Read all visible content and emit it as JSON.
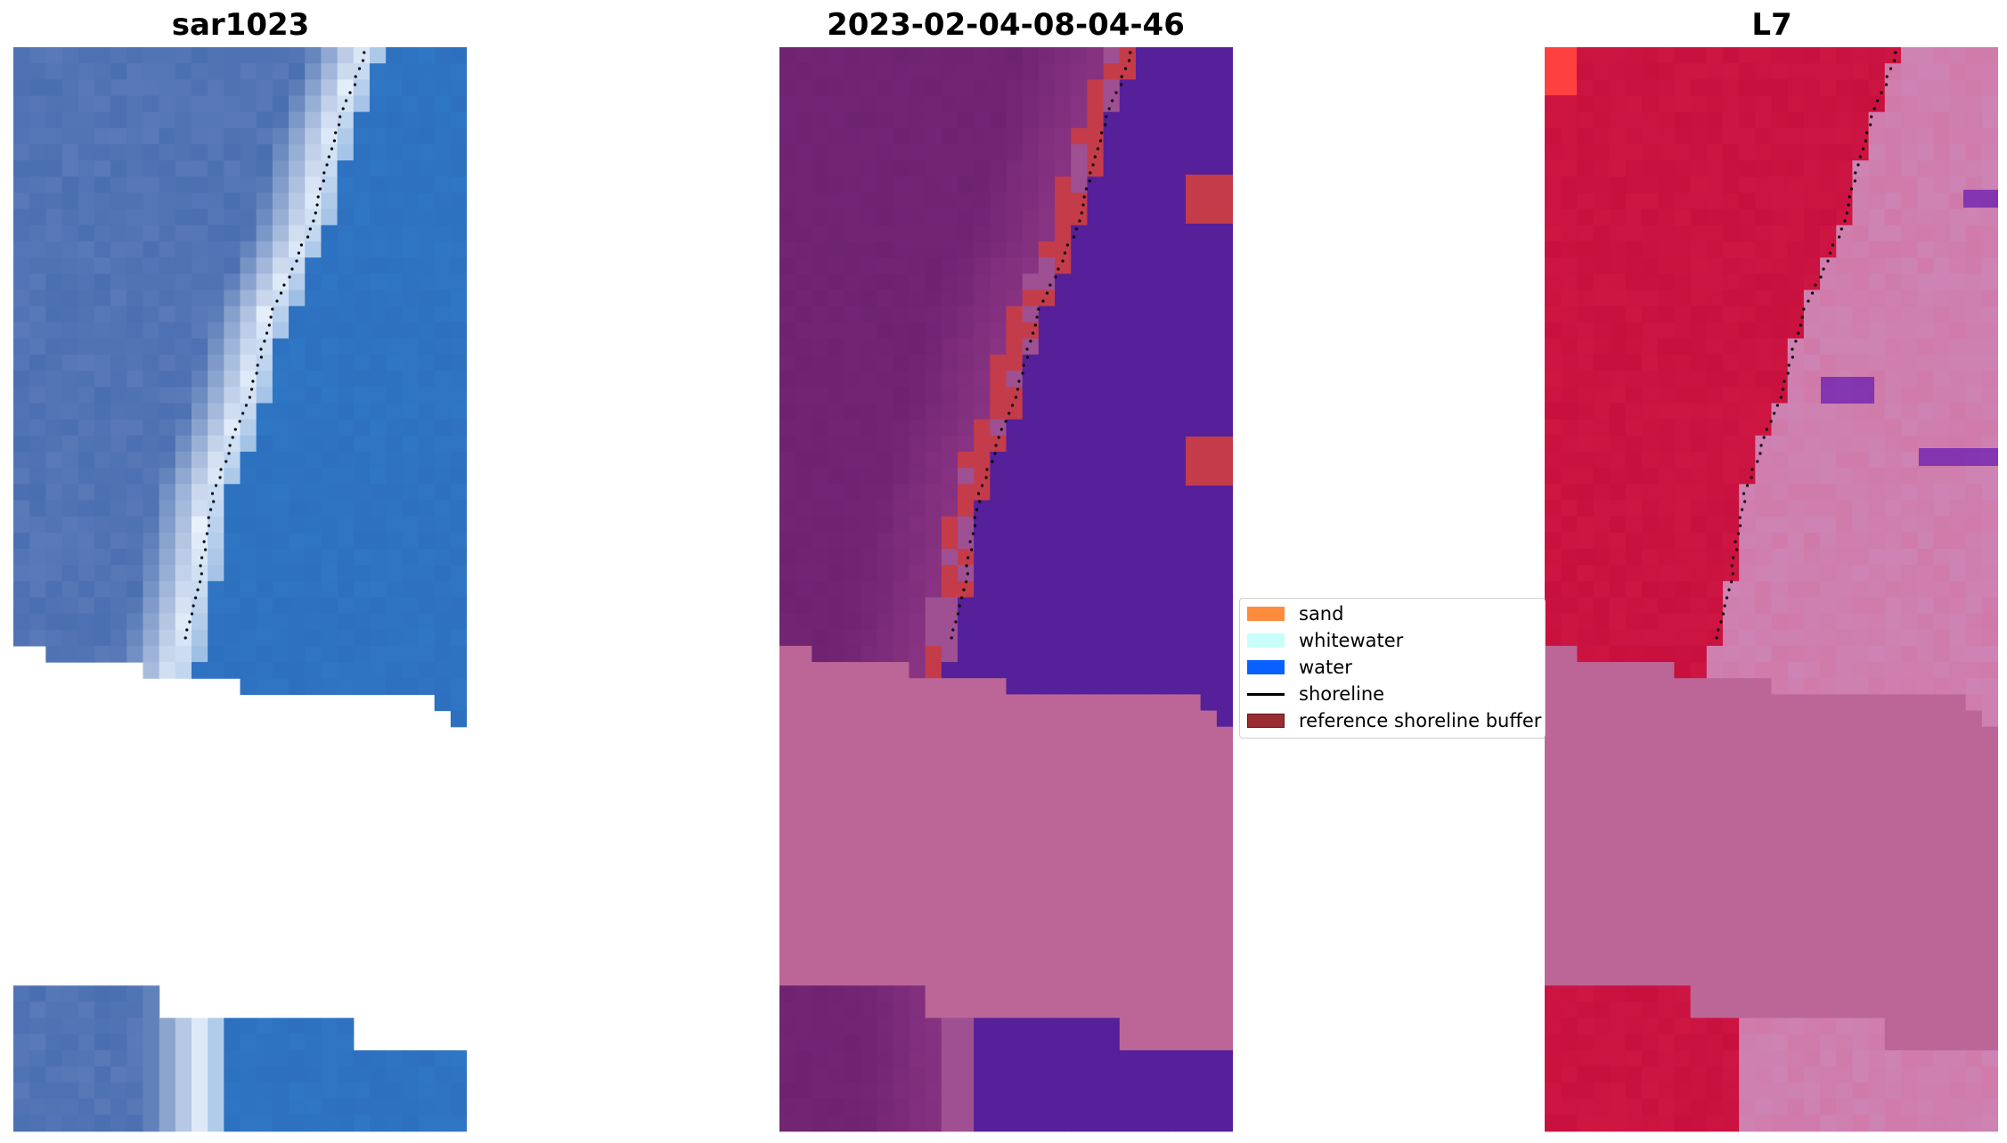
{
  "panels": [
    {
      "title": "sar1023",
      "scheme": "rgb"
    },
    {
      "title": "2023-02-04-08-04-46",
      "scheme": "class"
    },
    {
      "title": "L7",
      "scheme": "ndwi"
    }
  ],
  "legend": {
    "items": [
      {
        "label": "sand",
        "color": "#ff8c3c",
        "kind": "patch"
      },
      {
        "label": "whitewater",
        "color": "#c8fffa",
        "kind": "patch"
      },
      {
        "label": "water",
        "color": "#0a60ff",
        "kind": "patch"
      },
      {
        "label": "shoreline",
        "color": "#000000",
        "kind": "line"
      },
      {
        "label": "reference shoreline buffer",
        "color": "#9b2d32",
        "kind": "patch"
      }
    ]
  },
  "colors": {
    "rgb_land": "#4a6fb0",
    "rgb_water": "#2f76c4",
    "rgb_whitewater": "#e8f0fb",
    "class_land": "#6e2371",
    "class_water": "#55209a",
    "class_buffer": "#c43c4a",
    "nodata_pink": "#bb6696",
    "ndwi_land": "#c8103e",
    "ndwi_water": "#d07aa9",
    "ndwi_hot": "#ff4040",
    "ndwi_purple": "#6a1db0",
    "shoreline": "#000000"
  }
}
